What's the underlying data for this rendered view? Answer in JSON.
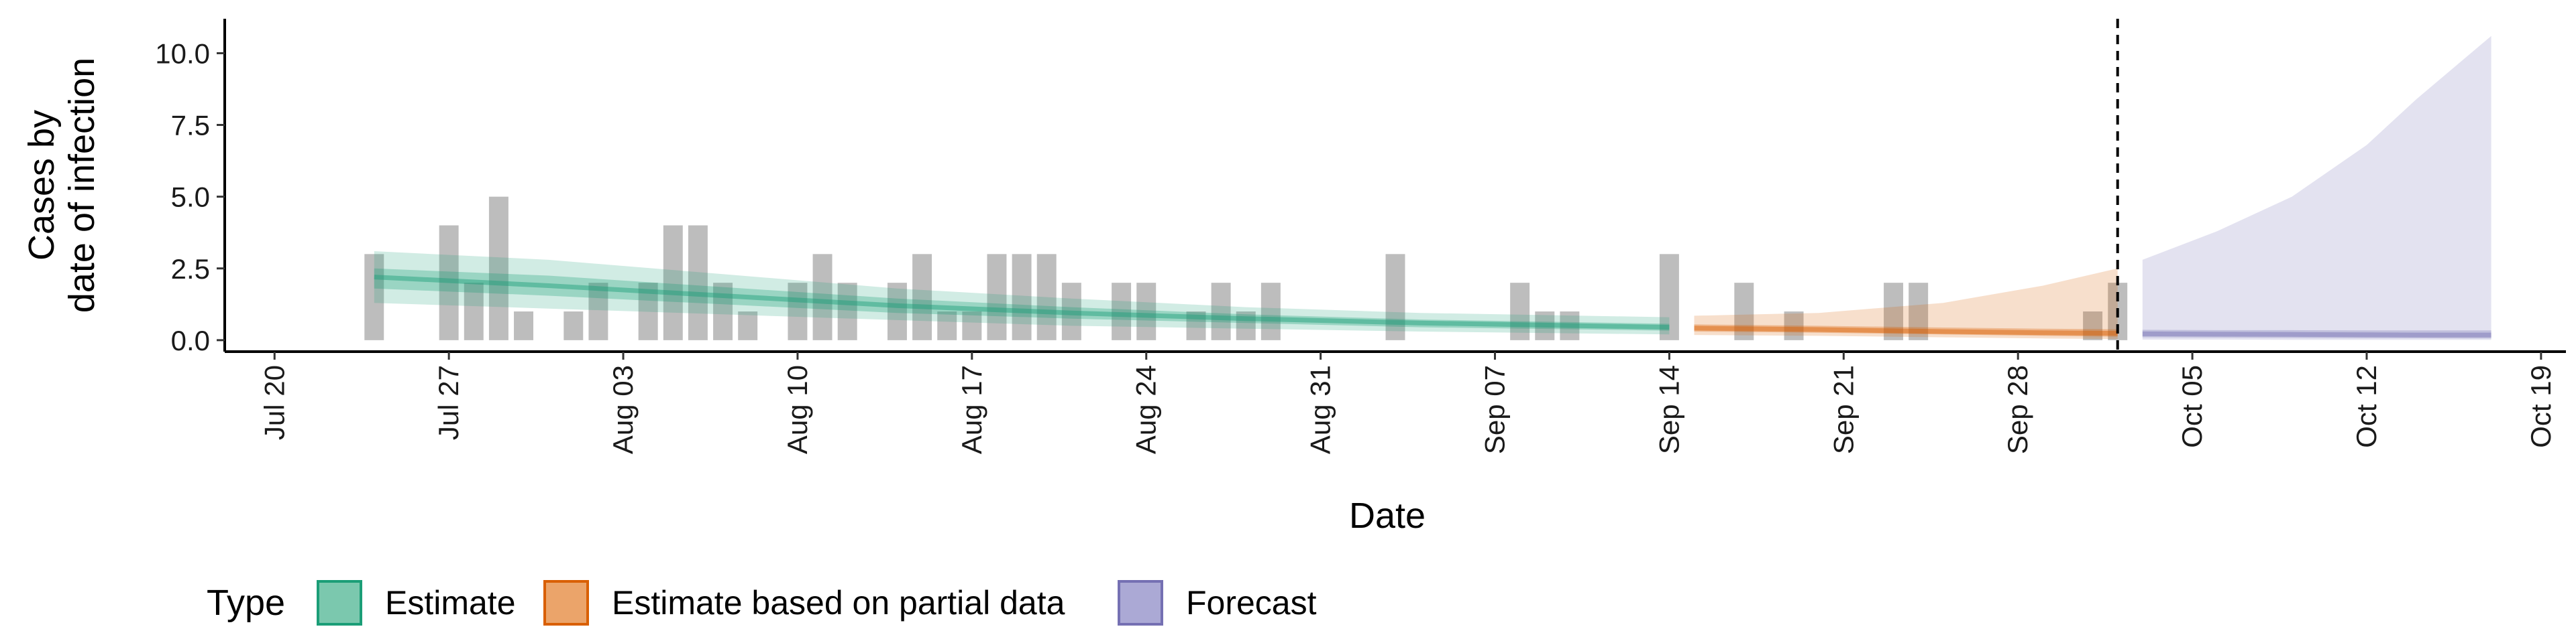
{
  "chart_data": {
    "type": "area",
    "title": "",
    "xlabel": "Date",
    "ylabel_lines": [
      "Cases by",
      "date of infection"
    ],
    "x_range": [
      "2020-07-18",
      "2020-10-20"
    ],
    "ylim": [
      -0.4,
      11.2
    ],
    "y_ticks": [
      0,
      2.5,
      5,
      7.5,
      10
    ],
    "y_tick_labels": [
      "0.0",
      "2.5",
      "5.0",
      "7.5",
      "10.0"
    ],
    "x_ticks": [
      "2020-07-20",
      "2020-07-27",
      "2020-08-03",
      "2020-08-10",
      "2020-08-17",
      "2020-08-24",
      "2020-08-31",
      "2020-09-07",
      "2020-09-14",
      "2020-09-21",
      "2020-09-28",
      "2020-10-05",
      "2020-10-12",
      "2020-10-19"
    ],
    "x_tick_labels": [
      "Jul 20",
      "Jul 27",
      "Aug 03",
      "Aug 10",
      "Aug 17",
      "Aug 24",
      "Aug 31",
      "Sep 07",
      "Sep 14",
      "Sep 21",
      "Sep 28",
      "Oct 05",
      "Oct 12",
      "Oct 19"
    ],
    "forecast_start": "2020-10-02",
    "observed_cases": [
      {
        "date": "2020-07-24",
        "value": 3
      },
      {
        "date": "2020-07-27",
        "value": 4
      },
      {
        "date": "2020-07-28",
        "value": 2
      },
      {
        "date": "2020-07-29",
        "value": 5
      },
      {
        "date": "2020-07-30",
        "value": 1
      },
      {
        "date": "2020-08-01",
        "value": 1
      },
      {
        "date": "2020-08-02",
        "value": 2
      },
      {
        "date": "2020-08-04",
        "value": 2
      },
      {
        "date": "2020-08-05",
        "value": 4
      },
      {
        "date": "2020-08-06",
        "value": 4
      },
      {
        "date": "2020-08-07",
        "value": 2
      },
      {
        "date": "2020-08-08",
        "value": 1
      },
      {
        "date": "2020-08-10",
        "value": 2
      },
      {
        "date": "2020-08-11",
        "value": 3
      },
      {
        "date": "2020-08-12",
        "value": 2
      },
      {
        "date": "2020-08-14",
        "value": 2
      },
      {
        "date": "2020-08-15",
        "value": 3
      },
      {
        "date": "2020-08-16",
        "value": 1
      },
      {
        "date": "2020-08-17",
        "value": 1
      },
      {
        "date": "2020-08-18",
        "value": 3
      },
      {
        "date": "2020-08-19",
        "value": 3
      },
      {
        "date": "2020-08-20",
        "value": 3
      },
      {
        "date": "2020-08-21",
        "value": 2
      },
      {
        "date": "2020-08-23",
        "value": 2
      },
      {
        "date": "2020-08-24",
        "value": 2
      },
      {
        "date": "2020-08-26",
        "value": 1
      },
      {
        "date": "2020-08-27",
        "value": 2
      },
      {
        "date": "2020-08-28",
        "value": 1
      },
      {
        "date": "2020-08-29",
        "value": 2
      },
      {
        "date": "2020-09-03",
        "value": 3
      },
      {
        "date": "2020-09-08",
        "value": 2
      },
      {
        "date": "2020-09-09",
        "value": 1
      },
      {
        "date": "2020-09-10",
        "value": 1
      },
      {
        "date": "2020-09-14",
        "value": 3
      },
      {
        "date": "2020-09-17",
        "value": 2
      },
      {
        "date": "2020-09-19",
        "value": 1
      },
      {
        "date": "2020-09-23",
        "value": 2
      },
      {
        "date": "2020-09-24",
        "value": 2
      },
      {
        "date": "2020-10-01",
        "value": 1
      },
      {
        "date": "2020-10-02",
        "value": 2
      }
    ],
    "series": [
      {
        "name": "Estimate",
        "color": "#1B9E77",
        "points": [
          {
            "date": "2020-07-24",
            "median": 2.2,
            "lo50": 1.8,
            "hi50": 2.5,
            "lo90": 1.3,
            "hi90": 3.1
          },
          {
            "date": "2020-07-31",
            "median": 1.9,
            "lo50": 1.55,
            "hi50": 2.25,
            "lo90": 1.1,
            "hi90": 2.8
          },
          {
            "date": "2020-08-07",
            "median": 1.55,
            "lo50": 1.25,
            "hi50": 1.85,
            "lo90": 0.9,
            "hi90": 2.3
          },
          {
            "date": "2020-08-14",
            "median": 1.2,
            "lo50": 0.95,
            "hi50": 1.45,
            "lo90": 0.7,
            "hi90": 1.8
          },
          {
            "date": "2020-08-21",
            "median": 0.95,
            "lo50": 0.75,
            "hi50": 1.15,
            "lo90": 0.5,
            "hi90": 1.45
          },
          {
            "date": "2020-08-28",
            "median": 0.75,
            "lo50": 0.6,
            "hi50": 0.9,
            "lo90": 0.4,
            "hi90": 1.15
          },
          {
            "date": "2020-09-04",
            "median": 0.6,
            "lo50": 0.45,
            "hi50": 0.72,
            "lo90": 0.3,
            "hi90": 0.95
          },
          {
            "date": "2020-09-14",
            "median": 0.45,
            "lo50": 0.33,
            "hi50": 0.57,
            "lo90": 0.2,
            "hi90": 0.8
          }
        ]
      },
      {
        "name": "Estimate based on partial data",
        "color": "#D95F02",
        "points": [
          {
            "date": "2020-09-15",
            "median": 0.42,
            "lo50": 0.3,
            "hi50": 0.55,
            "lo90": 0.18,
            "hi90": 0.85
          },
          {
            "date": "2020-09-20",
            "median": 0.37,
            "lo50": 0.26,
            "hi50": 0.5,
            "lo90": 0.15,
            "hi90": 0.95
          },
          {
            "date": "2020-09-25",
            "median": 0.3,
            "lo50": 0.2,
            "hi50": 0.44,
            "lo90": 0.1,
            "hi90": 1.3
          },
          {
            "date": "2020-09-29",
            "median": 0.26,
            "lo50": 0.15,
            "hi50": 0.4,
            "lo90": 0.06,
            "hi90": 1.9
          },
          {
            "date": "2020-10-02",
            "median": 0.24,
            "lo50": 0.12,
            "hi50": 0.38,
            "lo90": 0.04,
            "hi90": 2.5
          }
        ]
      },
      {
        "name": "Forecast",
        "color": "#7570B3",
        "points": [
          {
            "date": "2020-10-03",
            "median": 0.22,
            "lo50": 0.1,
            "hi50": 0.36,
            "lo90": 0.02,
            "hi90": 2.8
          },
          {
            "date": "2020-10-06",
            "median": 0.21,
            "lo50": 0.09,
            "hi50": 0.35,
            "lo90": 0.02,
            "hi90": 3.8
          },
          {
            "date": "2020-10-09",
            "median": 0.2,
            "lo50": 0.08,
            "hi50": 0.35,
            "lo90": 0.01,
            "hi90": 5.0
          },
          {
            "date": "2020-10-12",
            "median": 0.19,
            "lo50": 0.07,
            "hi50": 0.34,
            "lo90": 0.01,
            "hi90": 6.8
          },
          {
            "date": "2020-10-14",
            "median": 0.18,
            "lo50": 0.07,
            "hi50": 0.34,
            "lo90": 0.01,
            "hi90": 8.4
          },
          {
            "date": "2020-10-17",
            "median": 0.18,
            "lo50": 0.06,
            "hi50": 0.34,
            "lo90": 0.01,
            "hi90": 10.6
          }
        ]
      }
    ],
    "legend": {
      "title": "Type",
      "placement": "bottom-left",
      "items": [
        {
          "label": "Estimate",
          "fill": "#7BC8AE",
          "stroke": "#1B9E77"
        },
        {
          "label": "Estimate based on partial data",
          "fill": "#EBA46A",
          "stroke": "#D95F02"
        },
        {
          "label": "Forecast",
          "fill": "#ABA9D5",
          "stroke": "#7570B3"
        }
      ]
    },
    "bar_color": "#999999",
    "grid": false
  }
}
